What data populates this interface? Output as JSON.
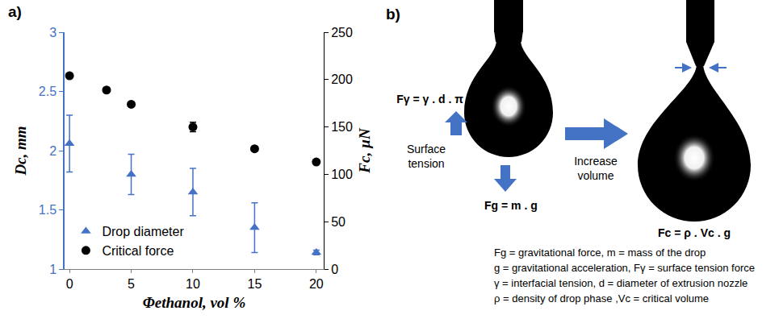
{
  "chart_data": {
    "type": "scatter",
    "panel_label": "a)",
    "xlabel": "Φethanol, vol %",
    "ylabel": "Dc, mm",
    "y2label": "Fc, µN",
    "xlim": [
      -0.4,
      20.6
    ],
    "xticks": [
      0,
      5,
      10,
      15,
      20
    ],
    "ylim": [
      1,
      3
    ],
    "yticks": [
      1,
      1.5,
      2,
      2.5,
      3
    ],
    "y2lim": [
      0,
      250
    ],
    "y2ticks": [
      0,
      50,
      100,
      150,
      200,
      250
    ],
    "grid": false,
    "legend": "lower left",
    "series": [
      {
        "name": "Drop diameter",
        "color": "#4472c4",
        "marker": "triangle-up",
        "x": [
          0,
          5,
          10,
          15,
          20
        ],
        "values": [
          2.06,
          1.8,
          1.65,
          1.35,
          1.14
        ],
        "errors": [
          0.24,
          0.17,
          0.2,
          0.21,
          0.02
        ]
      },
      {
        "name": "Critical force",
        "color": "#000000",
        "marker": "circle",
        "axis": "y2",
        "x": [
          0,
          3,
          5,
          10,
          15,
          20
        ],
        "values": [
          204,
          189,
          174,
          150,
          127,
          113
        ],
        "errors": [
          2,
          2,
          2,
          5,
          2,
          2
        ]
      }
    ]
  },
  "diagram": {
    "panel_label": "b)",
    "surface_tension_force": "Fγ = γ . d . π",
    "surface_tension_label": "Surface tension",
    "gravitational_force": "Fg = m . g",
    "arrow_label": "Increase volume",
    "critical_force": "Fc = ρ . Vc . g",
    "definitions": [
      "Fg = gravitational force, m = mass of the drop",
      "g = gravitational acceleration, Fγ = surface tension force",
      "γ = interfacial tension, d = diameter of extrusion nozzle",
      "ρ = density of drop phase ,Vc = critical volume"
    ]
  }
}
